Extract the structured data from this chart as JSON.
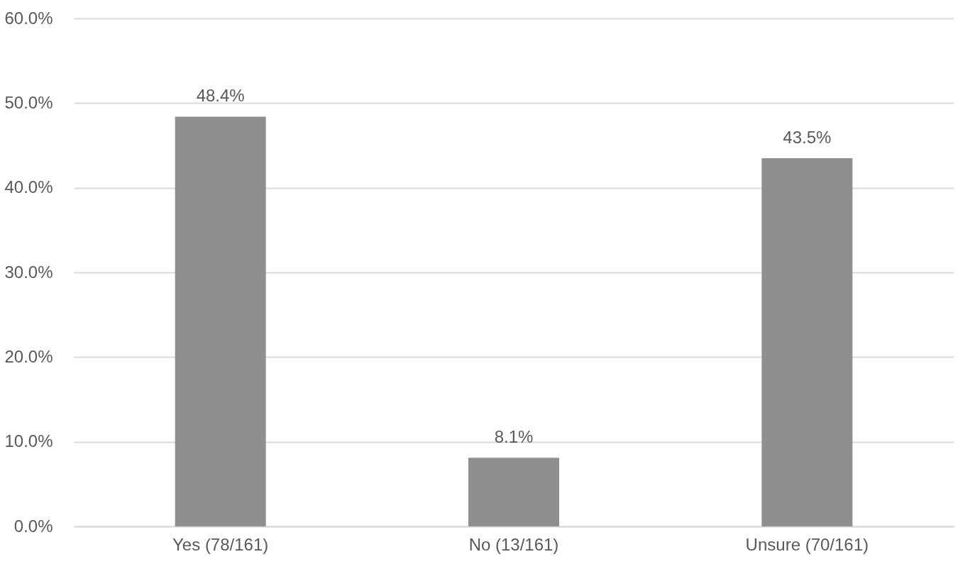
{
  "chart_data": {
    "type": "bar",
    "categories": [
      "Yes (78/161)",
      "No (13/161)",
      "Unsure (70/161)"
    ],
    "values": [
      48.4,
      8.1,
      43.5
    ],
    "value_labels": [
      "48.4%",
      "8.1%",
      "43.5%"
    ],
    "color": "#8f8f8f",
    "ylim": [
      0,
      60
    ],
    "yticks": [
      {
        "value": 0,
        "label": "0.0%"
      },
      {
        "value": 10,
        "label": "10.0%"
      },
      {
        "value": 20,
        "label": "20.0%"
      },
      {
        "value": 30,
        "label": "30.0%"
      },
      {
        "value": 40,
        "label": "40.0%"
      },
      {
        "value": 50,
        "label": "50.0%"
      },
      {
        "value": 60,
        "label": "60.0%"
      }
    ],
    "grid": "y"
  }
}
